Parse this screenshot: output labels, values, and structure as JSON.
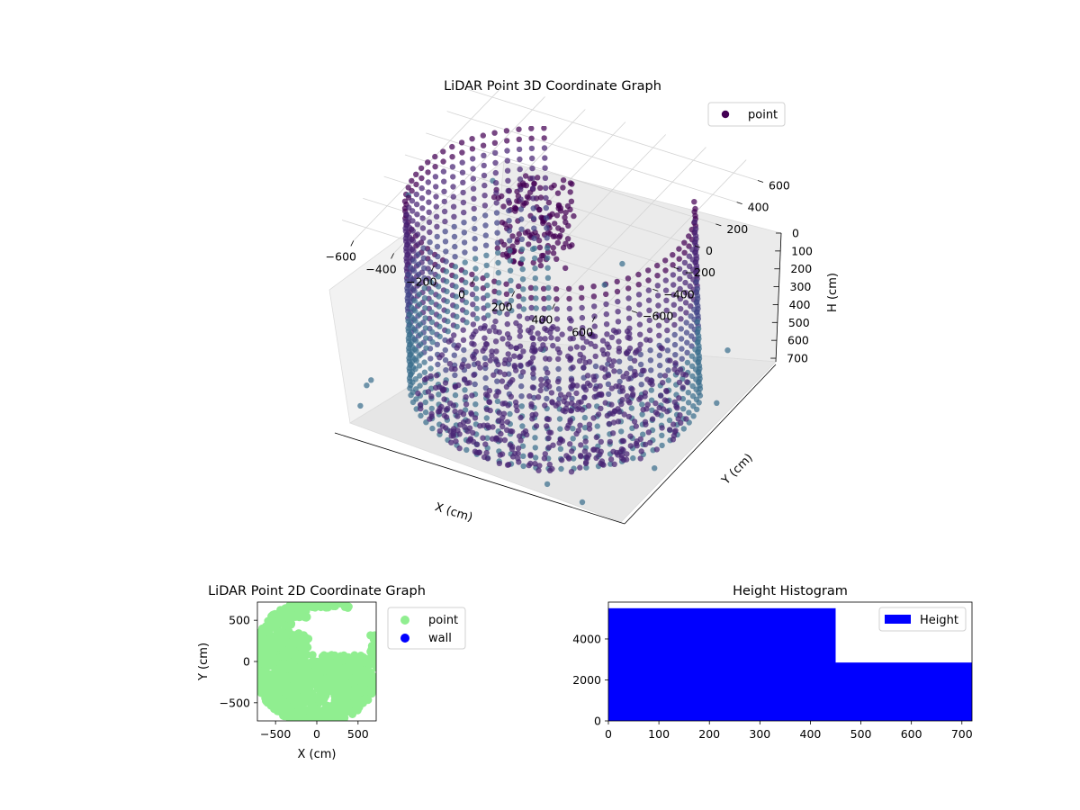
{
  "chart_data": [
    {
      "type": "scatter",
      "projection": "3d",
      "title": "LiDAR Point 3D Coordinate Graph",
      "xlabel": "X (cm)",
      "ylabel": "Y (cm)",
      "zlabel": "H (cm)",
      "xlim": [
        -720,
        720
      ],
      "ylim": [
        -720,
        720
      ],
      "zlim": [
        720,
        0
      ],
      "xticks": [
        "−600",
        "−400",
        "−200",
        "0",
        "200",
        "400",
        "600"
      ],
      "yticks": [
        "−600",
        "−400",
        "−200",
        "0",
        "200",
        "400",
        "600"
      ],
      "zticks": [
        "0",
        "100",
        "200",
        "300",
        "400",
        "500",
        "600",
        "700"
      ],
      "z_axis_inverted": true,
      "grid": true,
      "legend": {
        "placement": "upper-right",
        "entries": [
          {
            "name": "point",
            "color": "#440154"
          }
        ]
      },
      "colormap": "viridis",
      "series": [
        {
          "name": "point",
          "shape": "cylindrical wall of points plus scattered outliers",
          "wall": {
            "radius_cm": 640,
            "height_range_cm": [
              0,
              720
            ],
            "arc_start_deg": 120,
            "arc_end_deg": 395
          },
          "floor_disk": {
            "height_cm": 700
          },
          "outliers": [
            {
              "x": -600,
              "y": -200,
              "h": 40
            },
            {
              "x": -500,
              "y": 400,
              "h": 200
            },
            {
              "x": -650,
              "y": -500,
              "h": 600
            },
            {
              "x": -700,
              "y": -450,
              "h": 650
            },
            {
              "x": -680,
              "y": -550,
              "h": 680
            },
            {
              "x": 300,
              "y": -650,
              "h": 700
            },
            {
              "x": 500,
              "y": -700,
              "h": 700
            },
            {
              "x": 650,
              "y": -300,
              "h": 700
            },
            {
              "x": 700,
              "y": 200,
              "h": 650
            },
            {
              "x": 600,
              "y": 500,
              "h": 600
            },
            {
              "x": -200,
              "y": 200,
              "h": 300
            },
            {
              "x": 100,
              "y": 300,
              "h": 400
            },
            {
              "x": 300,
              "y": 100,
              "h": 200
            },
            {
              "x": 0,
              "y": -100,
              "h": 500
            }
          ]
        }
      ]
    },
    {
      "type": "scatter",
      "title": "LiDAR Point 2D Coordinate Graph",
      "xlabel": "X (cm)",
      "ylabel": "Y (cm)",
      "xlim": [
        -720,
        720
      ],
      "ylim": [
        -720,
        720
      ],
      "xticks": [
        "−500",
        "0",
        "500"
      ],
      "yticks": [
        "500",
        "0",
        "−500"
      ],
      "legend": {
        "placement": "outside-right",
        "entries": [
          {
            "name": "point",
            "color": "#90ee90"
          },
          {
            "name": "wall",
            "color": "#0000ff"
          }
        ]
      },
      "series": [
        {
          "name": "point",
          "color": "#90ee90",
          "description": "dense filled disk of points with empty region in the upper-right"
        },
        {
          "name": "wall",
          "color": "#0000ff",
          "points": []
        }
      ]
    },
    {
      "type": "bar",
      "subtype": "histogram",
      "title": "Height Histogram",
      "legend": {
        "placement": "upper-right",
        "entries": [
          {
            "name": "Height",
            "color": "#0000ff"
          }
        ]
      },
      "xlim": [
        0,
        720
      ],
      "ylim": [
        0,
        5800
      ],
      "xticks": [
        "0",
        "100",
        "200",
        "300",
        "400",
        "500",
        "600",
        "700"
      ],
      "yticks": [
        "0",
        "2000",
        "4000"
      ],
      "bins": [
        {
          "start": 0,
          "end": 450,
          "count": 5500
        },
        {
          "start": 450,
          "end": 720,
          "count": 2850
        }
      ],
      "color": "#0000ff"
    }
  ]
}
